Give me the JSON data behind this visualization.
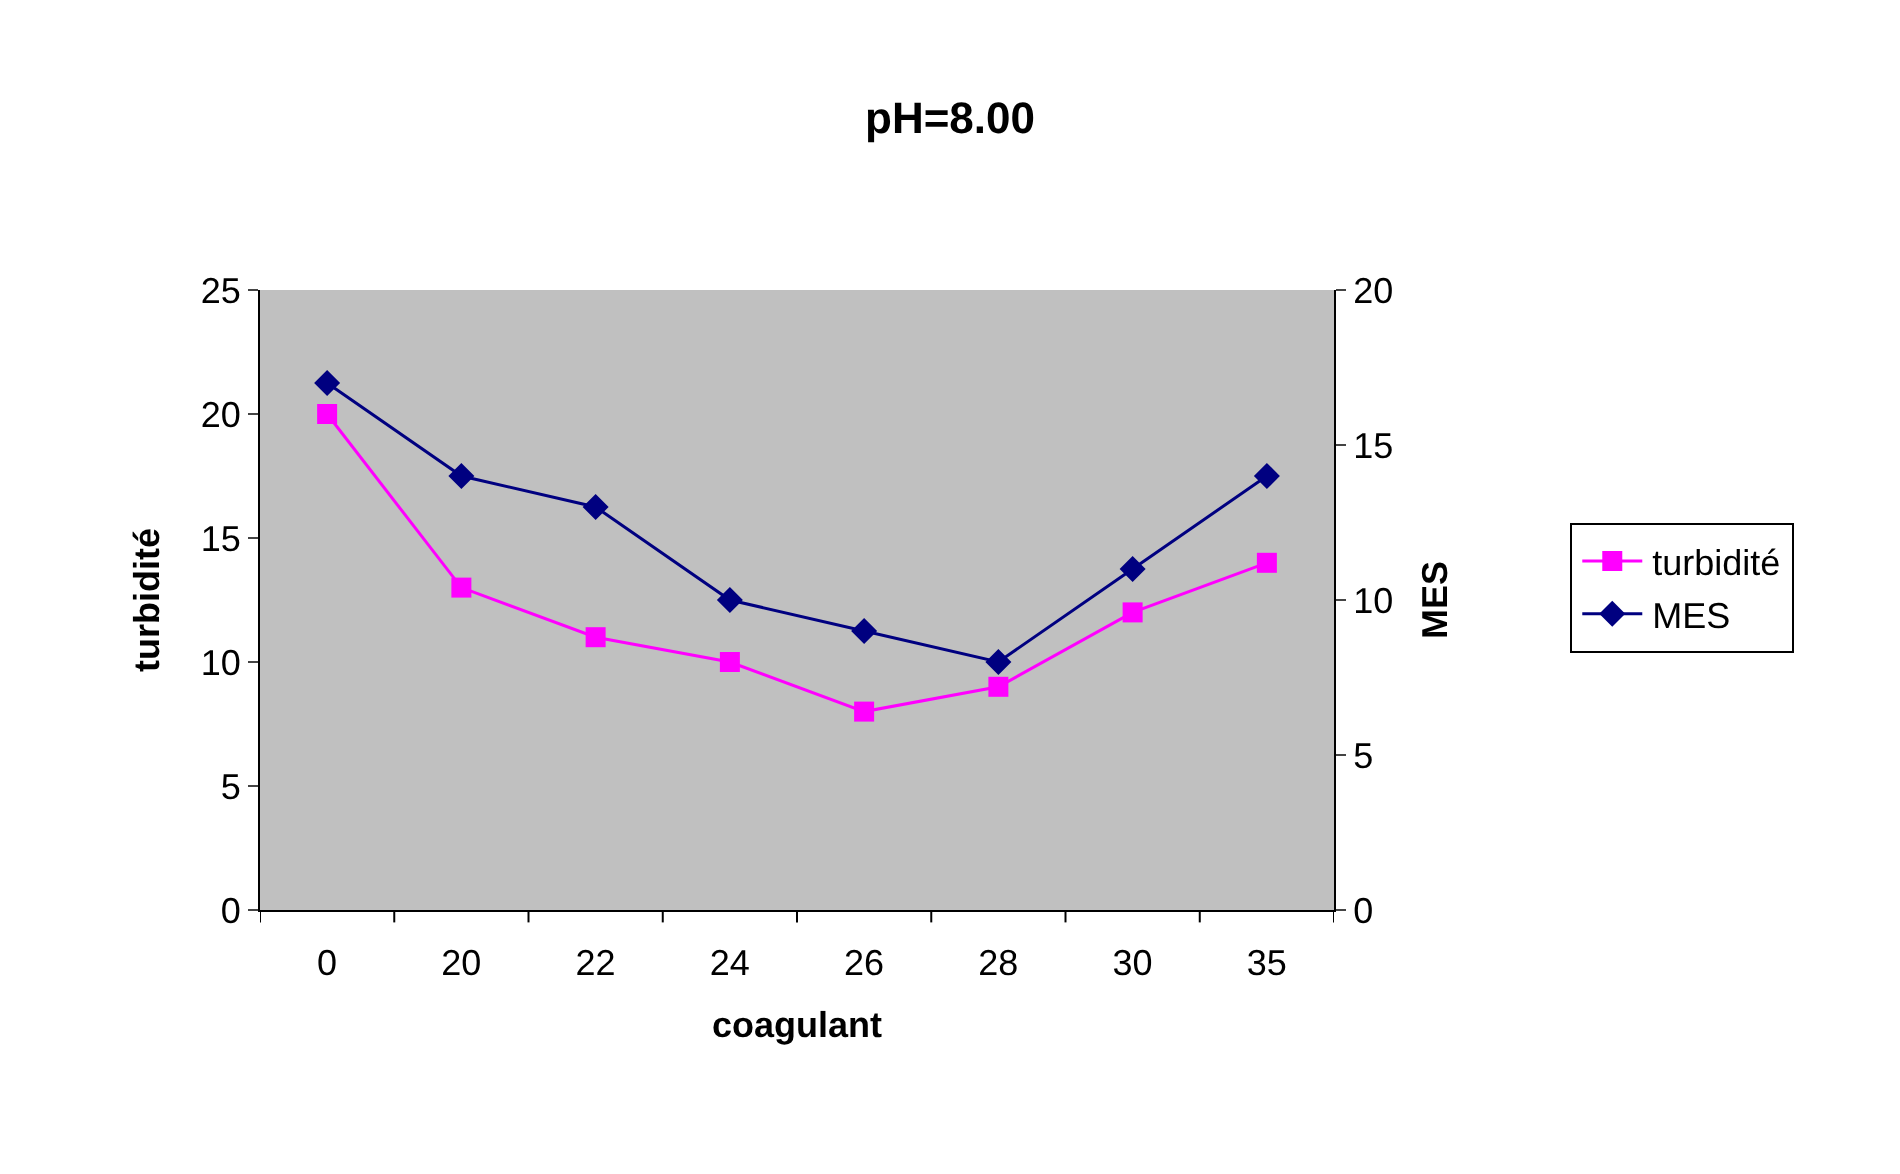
{
  "chart_data": {
    "type": "line",
    "title": "pH=8.00",
    "xlabel": "coagulant",
    "ylabel": "turbidité",
    "y2label": "MES",
    "categories": [
      "0",
      "20",
      "22",
      "24",
      "26",
      "28",
      "30",
      "35"
    ],
    "series": [
      {
        "name": "turbidité",
        "color": "#ff00ff",
        "marker": "square",
        "values": [
          20,
          13,
          11,
          10,
          8,
          9,
          12,
          14
        ]
      },
      {
        "name": "MES",
        "color": "#000080",
        "marker": "diamond",
        "axis": "y2",
        "values": [
          17,
          14,
          13,
          10,
          9,
          8,
          11,
          14
        ]
      }
    ],
    "ylim": [
      0,
      25
    ],
    "yticks": [
      0,
      5,
      10,
      15,
      20,
      25
    ],
    "y2lim": [
      0,
      20
    ],
    "y2ticks": [
      0,
      5,
      10,
      15,
      20
    ],
    "grid": false,
    "legend": "right",
    "line_style": "solid"
  }
}
